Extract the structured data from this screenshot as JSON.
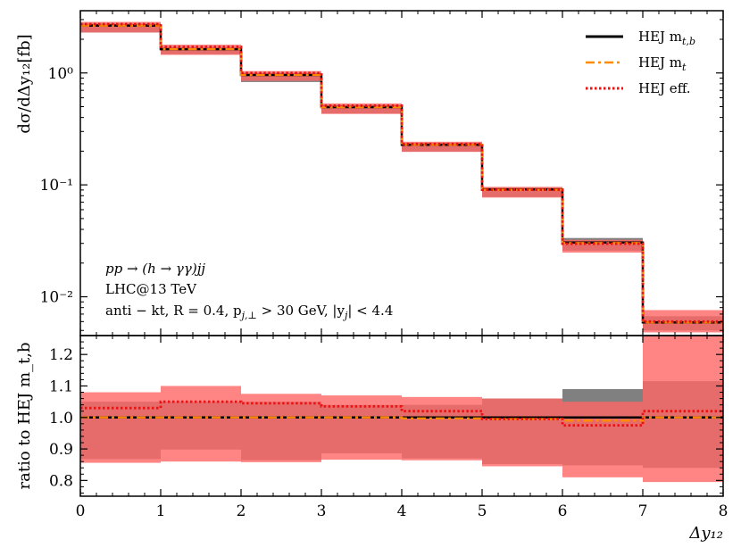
{
  "chart_data": {
    "type": "line",
    "subtype": "histogram-step",
    "x_edges": [
      0,
      1,
      2,
      3,
      4,
      5,
      6,
      7,
      8
    ],
    "xlabel": "Δy₁₂",
    "xlim": [
      0,
      8
    ],
    "x_ticks": [
      0,
      1,
      2,
      3,
      4,
      5,
      6,
      7,
      8
    ],
    "upper": {
      "ylabel": "dσ/dΔy₁₂[fb]",
      "yscale": "log",
      "ylim": [
        0.0045,
        3.6
      ],
      "y_ticks": [
        {
          "value": 1,
          "label": "10⁰"
        },
        {
          "value": 0.1,
          "label": "10⁻¹"
        },
        {
          "value": 0.01,
          "label": "10⁻²"
        }
      ],
      "series": [
        {
          "name": "HEJ m_t,b",
          "color": "#000000",
          "style": "solid",
          "values": [
            2.65,
            1.63,
            0.96,
            0.495,
            0.228,
            0.091,
            0.0305,
            0.0059
          ],
          "band_lo": [
            2.3,
            1.47,
            0.83,
            0.435,
            0.198,
            0.078,
            0.0258,
            0.005
          ],
          "band_hi": [
            2.78,
            1.71,
            1.0,
            0.515,
            0.237,
            0.095,
            0.0335,
            0.0067
          ],
          "band_color": "#808080"
        },
        {
          "name": "HEJ m_t",
          "color": "#ff8c00",
          "style": "dashdot",
          "values": [
            2.65,
            1.63,
            0.96,
            0.495,
            0.228,
            0.0905,
            0.0302,
            0.0059
          ]
        },
        {
          "name": "HEJ eff.",
          "color": "#ee1111",
          "style": "dotted",
          "values": [
            2.73,
            1.71,
            1.0,
            0.51,
            0.232,
            0.0905,
            0.0298,
            0.006
          ],
          "band_lo": [
            2.3,
            1.45,
            0.85,
            0.43,
            0.197,
            0.077,
            0.0248,
            0.0048
          ],
          "band_hi": [
            2.86,
            1.79,
            1.04,
            0.535,
            0.243,
            0.096,
            0.0323,
            0.0076
          ],
          "band_color": "#ff6666"
        }
      ]
    },
    "lower": {
      "ylabel": "ratio to HEJ m_t,b",
      "ylim": [
        0.75,
        1.26
      ],
      "y_ticks": [
        {
          "value": 0.8,
          "label": "0.8"
        },
        {
          "value": 0.9,
          "label": "0.9"
        },
        {
          "value": 1.0,
          "label": "1.0"
        },
        {
          "value": 1.1,
          "label": "1.1"
        },
        {
          "value": 1.2,
          "label": "1.2"
        }
      ],
      "series": [
        {
          "name": "HEJ m_t,b",
          "color": "#000000",
          "style": "solid",
          "values": [
            1.0,
            1.0,
            1.0,
            1.0,
            1.0,
            1.0,
            1.0,
            1.0
          ],
          "band_lo": [
            0.868,
            0.898,
            0.865,
            0.886,
            0.87,
            0.852,
            0.848,
            0.84
          ],
          "band_hi": [
            1.05,
            1.05,
            1.05,
            1.04,
            1.04,
            1.06,
            1.09,
            1.115
          ],
          "band_color": "#808080"
        },
        {
          "name": "HEJ m_t",
          "color": "#ff8c00",
          "style": "dashdot",
          "values": [
            1.0,
            1.0,
            1.0,
            1.0,
            0.997,
            0.995,
            0.99,
            1.0
          ]
        },
        {
          "name": "HEJ eff.",
          "color": "#ee1111",
          "style": "dotted",
          "values": [
            1.03,
            1.05,
            1.045,
            1.035,
            1.02,
            0.995,
            0.975,
            1.02
          ],
          "band_lo": [
            0.856,
            0.86,
            0.858,
            0.866,
            0.864,
            0.845,
            0.81,
            0.795
          ],
          "band_hi": [
            1.08,
            1.1,
            1.075,
            1.07,
            1.065,
            1.06,
            1.05,
            1.26
          ],
          "band_color": "#ff6666"
        }
      ]
    },
    "legend": {
      "position": "top-right",
      "entries": [
        {
          "label": "HEJ m",
          "sub": "t,b",
          "color": "#000000",
          "style": "solid"
        },
        {
          "label": "HEJ m",
          "sub": "t",
          "color": "#ff8c00",
          "style": "dashdot"
        },
        {
          "label": "HEJ eff.",
          "sub": "",
          "color": "#ee1111",
          "style": "dotted"
        }
      ]
    },
    "annotations": [
      "pp → (h → γγ)jj",
      "LHC@13 TeV",
      "anti − kt, R = 0.4, p",
      "j,⊥",
      " > 30 GeV, |y",
      "j",
      "| < 4.4"
    ]
  }
}
